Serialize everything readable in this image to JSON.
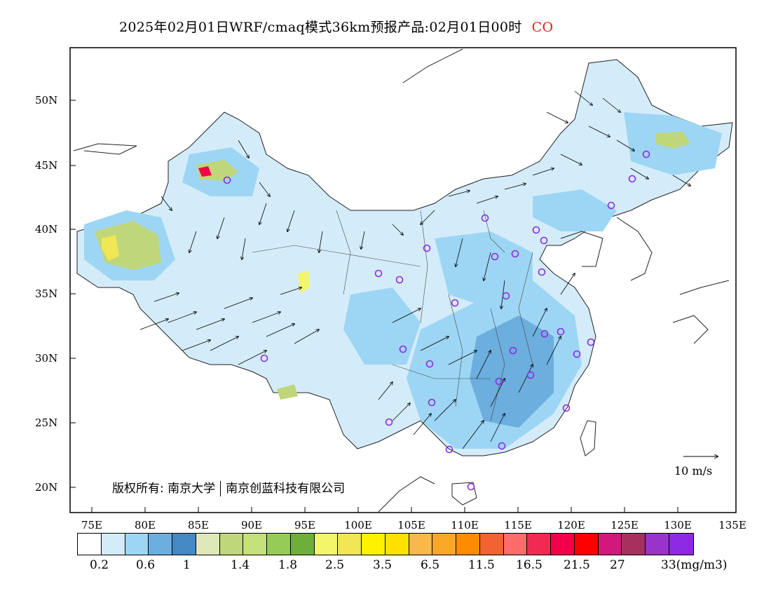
{
  "header": {
    "title": "2025年02月01日WRF/cmaq模式36km预报产品:02月01日00时",
    "species": "CO"
  },
  "axes": {
    "lat_labels": [
      "50N",
      "45N",
      "40N",
      "35N",
      "30N",
      "25N",
      "20N"
    ],
    "lon_labels": [
      "75E",
      "80E",
      "85E",
      "90E",
      "95E",
      "100E",
      "105E",
      "110E",
      "115E",
      "120E",
      "125E",
      "130E",
      "135E"
    ]
  },
  "copyright": {
    "prefix": "版权所有:",
    "org1": "南京大学",
    "org2": "南京创蓝科技有限公司"
  },
  "wind_reference": {
    "label": "10 m/s"
  },
  "colorbar": {
    "colors": [
      "#ffffff",
      "#d4ecfa",
      "#9dd6f4",
      "#6caedd",
      "#4489c3",
      "#dfe8b8",
      "#bfd67b",
      "#c3e07a",
      "#96cc55",
      "#6fae3a",
      "#f3f56a",
      "#f0e656",
      "#fff200",
      "#ffe100",
      "#f8b84a",
      "#f8a727",
      "#ff8c00",
      "#f26232",
      "#ff6b6b",
      "#f22a52",
      "#f3004a",
      "#ff0000",
      "#d3187b",
      "#a8305e",
      "#9933cc",
      "#8e2ae3"
    ],
    "labels": [
      "0.2",
      "0.6",
      "1",
      "1.4",
      "1.8",
      "2.5",
      "3.5",
      "6.5",
      "11.5",
      "16.5",
      "21.5",
      "27",
      "33(mg/m3)"
    ]
  }
}
